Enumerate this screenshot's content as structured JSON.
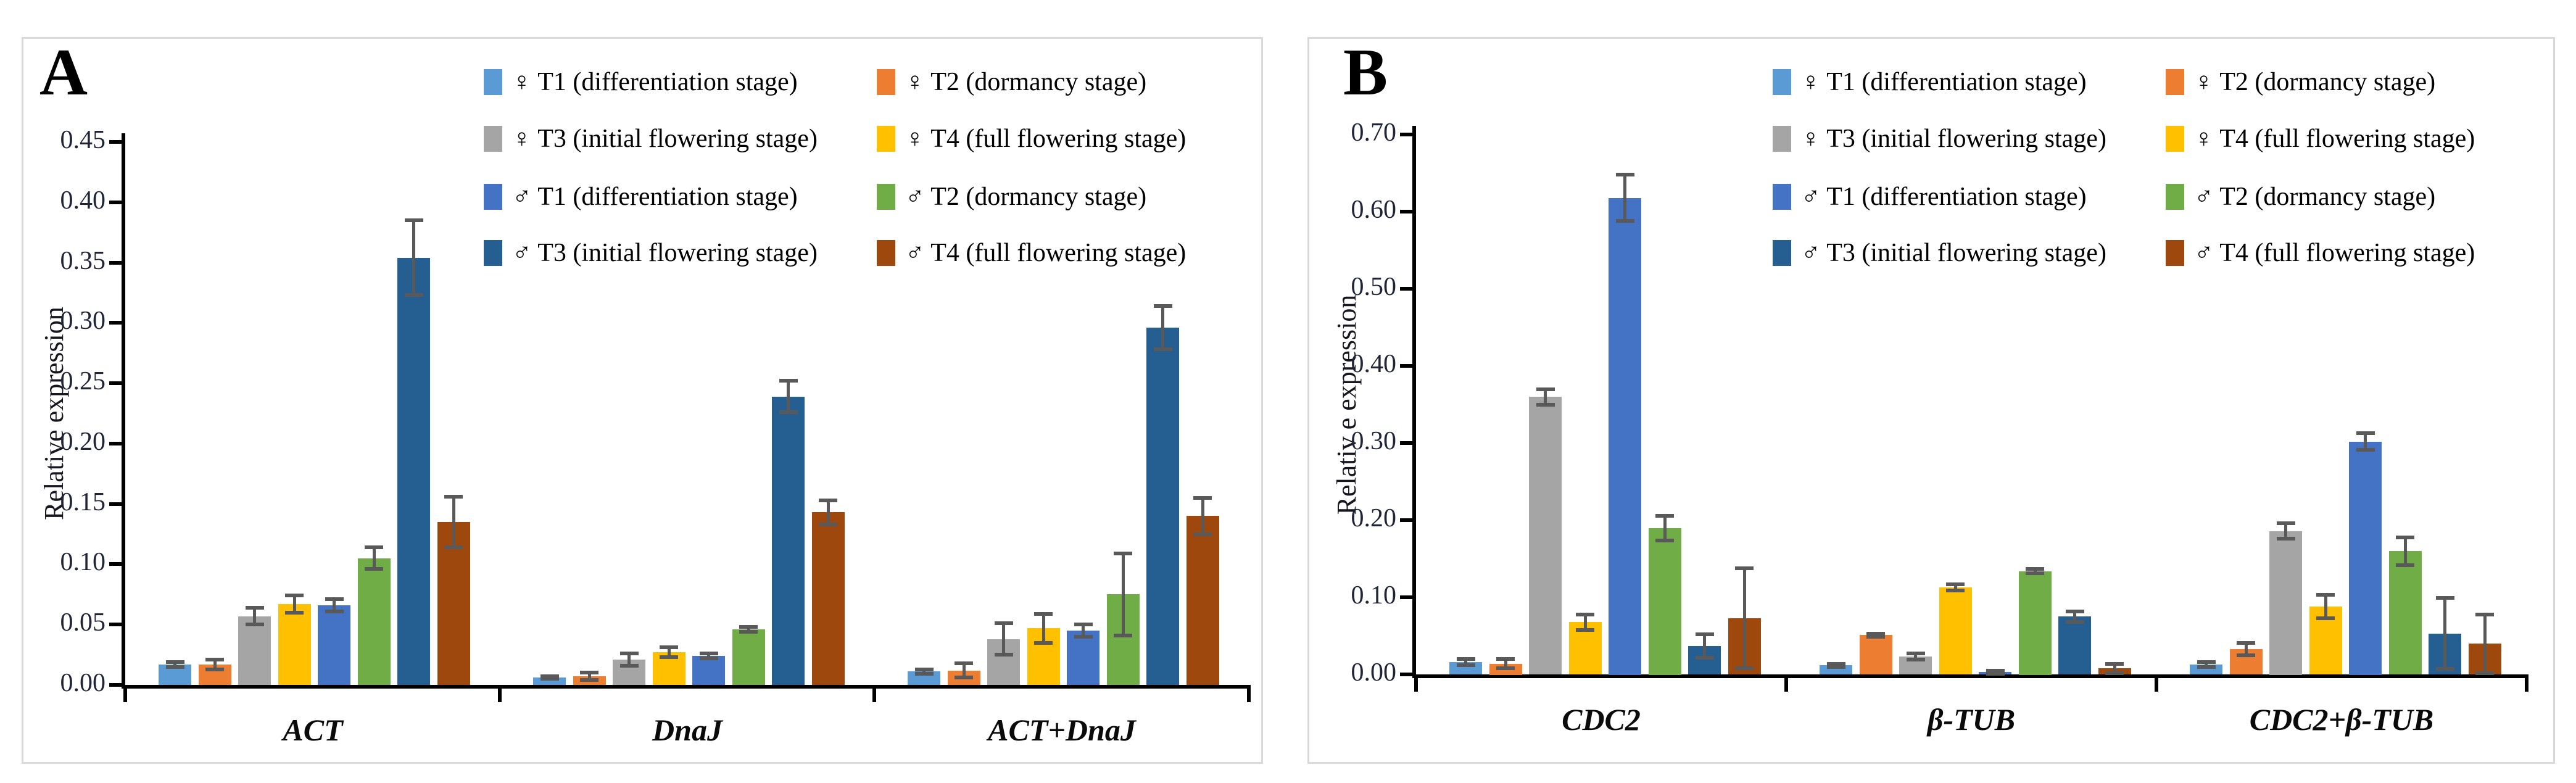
{
  "error_bar_color": "#595959",
  "axis_color": "#000000",
  "tick_label_color": "#1f2437",
  "panel_border_color": "#d9d9d9",
  "chart_data": [
    {
      "type": "bar",
      "panel_label": "A",
      "title": "",
      "xlabel": "",
      "ylabel": "Relative expression",
      "categories": [
        "ACT",
        "DnaJ",
        "ACT+DnaJ"
      ],
      "ylim": [
        0,
        0.45
      ],
      "ytick_step": 0.05,
      "ytick_labels": [
        "0.00",
        "0.05",
        "0.10",
        "0.15",
        "0.20",
        "0.25",
        "0.30",
        "0.35",
        "0.40",
        "0.45"
      ],
      "grid": false,
      "legend_position": "top-right",
      "legend_columns": 2,
      "series": [
        {
          "name": "♀ T1 (differentiation stage)",
          "color": "#5B9BD5",
          "values": [
            0.017,
            0.006,
            0.011
          ],
          "errors": [
            0.002,
            0.001,
            0.002
          ]
        },
        {
          "name": "♀ T2 (dormancy stage)",
          "color": "#ED7D31",
          "values": [
            0.017,
            0.007,
            0.012
          ],
          "errors": [
            0.004,
            0.003,
            0.006
          ]
        },
        {
          "name": "♀ T3 (initial flowering stage)",
          "color": "#A5A5A5",
          "values": [
            0.057,
            0.021,
            0.038
          ],
          "errors": [
            0.007,
            0.005,
            0.013
          ]
        },
        {
          "name": "♀ T4 (full flowering stage)",
          "color": "#FFC000",
          "values": [
            0.067,
            0.027,
            0.047
          ],
          "errors": [
            0.007,
            0.004,
            0.012
          ]
        },
        {
          "name": "♂ T1 (differentiation stage)",
          "color": "#4472C4",
          "values": [
            0.066,
            0.024,
            0.045
          ],
          "errors": [
            0.005,
            0.002,
            0.005
          ]
        },
        {
          "name": "♂ T2 (dormancy stage)",
          "color": "#70AD47",
          "values": [
            0.105,
            0.046,
            0.075
          ],
          "errors": [
            0.009,
            0.002,
            0.034
          ]
        },
        {
          "name": "♂ T3 (initial flowering stage)",
          "color": "#255E91",
          "values": [
            0.354,
            0.239,
            0.296
          ],
          "errors": [
            0.031,
            0.013,
            0.018
          ]
        },
        {
          "name": "♂ T4 (full flowering stage)",
          "color": "#9E480E",
          "values": [
            0.135,
            0.143,
            0.14
          ],
          "errors": [
            0.021,
            0.01,
            0.015
          ]
        }
      ]
    },
    {
      "type": "bar",
      "panel_label": "B",
      "title": "",
      "xlabel": "",
      "ylabel": "Relativ e expression",
      "categories": [
        "CDC2",
        "β-TUB",
        "CDC2+β-TUB"
      ],
      "ylim": [
        0,
        0.7
      ],
      "ytick_step": 0.1,
      "ytick_labels": [
        "0.00",
        "0.10",
        "0.20",
        "0.30",
        "0.40",
        "0.50",
        "0.60",
        "0.70"
      ],
      "grid": false,
      "legend_position": "top-right",
      "legend_columns": 2,
      "series": [
        {
          "name": "♀ T1 (differentiation stage)",
          "color": "#5B9BD5",
          "values": [
            0.016,
            0.012,
            0.013
          ],
          "errors": [
            0.004,
            0.002,
            0.003
          ]
        },
        {
          "name": "♀ T2 (dormancy stage)",
          "color": "#ED7D31",
          "values": [
            0.014,
            0.051,
            0.033
          ],
          "errors": [
            0.006,
            0.002,
            0.008
          ]
        },
        {
          "name": "♀ T3 (initial flowering stage)",
          "color": "#A5A5A5",
          "values": [
            0.36,
            0.023,
            0.186
          ],
          "errors": [
            0.01,
            0.004,
            0.01
          ]
        },
        {
          "name": "♀ T4 (full flowering stage)",
          "color": "#FFC000",
          "values": [
            0.068,
            0.113,
            0.088
          ],
          "errors": [
            0.01,
            0.004,
            0.015
          ]
        },
        {
          "name": "♂ T1 (differentiation stage)",
          "color": "#4472C4",
          "values": [
            0.618,
            0.003,
            0.302
          ],
          "errors": [
            0.03,
            0.002,
            0.011
          ]
        },
        {
          "name": "♂ T2 (dormancy stage)",
          "color": "#70AD47",
          "values": [
            0.19,
            0.134,
            0.16
          ],
          "errors": [
            0.016,
            0.003,
            0.018
          ]
        },
        {
          "name": "♂ T3 (initial flowering stage)",
          "color": "#255E91",
          "values": [
            0.037,
            0.075,
            0.053
          ],
          "errors": [
            0.015,
            0.007,
            0.046
          ]
        },
        {
          "name": "♂ T4 (full flowering stage)",
          "color": "#9E480E",
          "values": [
            0.073,
            0.008,
            0.04
          ],
          "errors": [
            0.065,
            0.006,
            0.038
          ]
        }
      ]
    }
  ]
}
